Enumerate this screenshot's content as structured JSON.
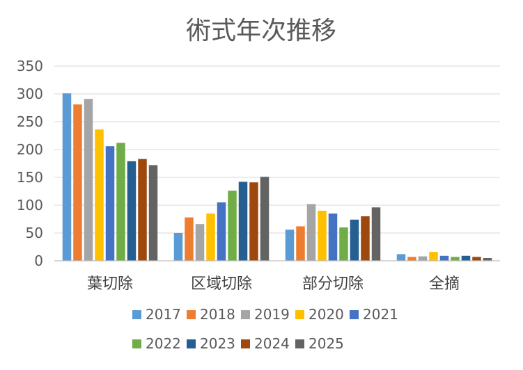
{
  "chart_data": {
    "type": "bar",
    "title": "術式年次推移",
    "xlabel": "",
    "ylabel": "",
    "categories": [
      "葉切除",
      "区域切除",
      "部分切除",
      "全摘"
    ],
    "ylim": [
      0,
      350
    ],
    "yticks": [
      0,
      50,
      100,
      150,
      200,
      250,
      300,
      350
    ],
    "grid": true,
    "legend_position": "bottom",
    "series": [
      {
        "name": "2017",
        "color": "#5b9bd5",
        "values": [
          301,
          50,
          56,
          12
        ]
      },
      {
        "name": "2018",
        "color": "#ed7d31",
        "values": [
          281,
          78,
          62,
          7
        ]
      },
      {
        "name": "2019",
        "color": "#a5a5a5",
        "values": [
          291,
          66,
          102,
          8
        ]
      },
      {
        "name": "2020",
        "color": "#ffc000",
        "values": [
          236,
          85,
          90,
          16
        ]
      },
      {
        "name": "2021",
        "color": "#4472c4",
        "values": [
          206,
          105,
          85,
          9
        ]
      },
      {
        "name": "2022",
        "color": "#70ad47",
        "values": [
          212,
          126,
          60,
          7
        ]
      },
      {
        "name": "2023",
        "color": "#255e91",
        "values": [
          179,
          142,
          74,
          9
        ]
      },
      {
        "name": "2024",
        "color": "#9e480e",
        "values": [
          183,
          141,
          80,
          7
        ]
      },
      {
        "name": "2025",
        "color": "#636363",
        "values": [
          172,
          151,
          96,
          5
        ]
      }
    ]
  }
}
